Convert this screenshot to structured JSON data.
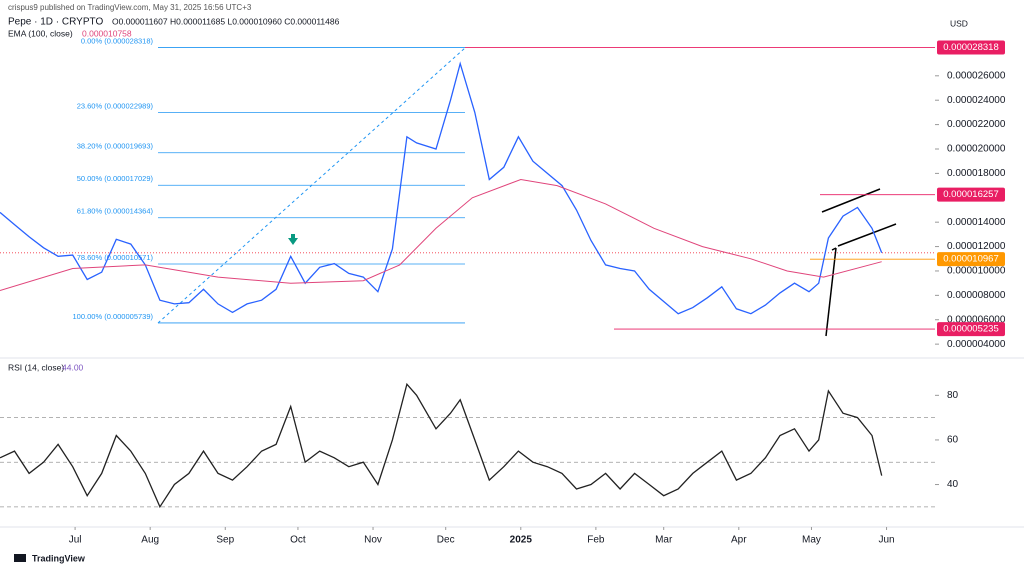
{
  "header": {
    "publisher": "crispus9 published on TradingView.com, May 31, 2025 16:56 UTC+3",
    "symbol": "Pepe · 1D · CRYPTO",
    "ohlc": "O0.000011607 H0.000011685 L0.000010960 C0.000011486",
    "ema_label": "EMA (100, close)",
    "ema_value": "0.000010758",
    "currency": "USD",
    "footer": "TradingView"
  },
  "chart_data": [
    {
      "type": "line",
      "title": "Pepe · 1D · CRYPTO",
      "x": [
        0,
        6,
        12,
        18,
        24,
        30,
        36,
        42,
        48,
        54,
        60,
        66,
        72,
        78,
        84,
        90,
        96,
        102,
        108,
        114,
        120,
        126,
        132,
        138,
        144,
        150,
        156,
        162,
        168,
        172,
        180,
        186,
        190,
        196,
        202,
        208,
        214,
        220,
        226,
        232,
        238,
        244,
        250,
        256,
        262,
        268,
        274,
        280,
        286,
        292,
        298,
        304,
        310,
        316,
        322,
        328,
        334,
        338,
        342,
        348,
        354,
        360,
        364
      ],
      "xlim": [
        0,
        386
      ],
      "xticks": [
        {
          "value": 31,
          "label": "Jul"
        },
        {
          "value": 62,
          "label": "Aug"
        },
        {
          "value": 93,
          "label": "Sep"
        },
        {
          "value": 123,
          "label": "Oct"
        },
        {
          "value": 154,
          "label": "Nov"
        },
        {
          "value": 184,
          "label": "Dec"
        },
        {
          "value": 215,
          "label": "2025"
        },
        {
          "value": 246,
          "label": "Feb"
        },
        {
          "value": 274,
          "label": "Mar"
        },
        {
          "value": 305,
          "label": "Apr"
        },
        {
          "value": 335,
          "label": "May"
        },
        {
          "value": 366,
          "label": "Jun"
        }
      ],
      "ylim": [
        3.11e-06,
        2.91e-05
      ],
      "yticks": [
        {
          "value": 4e-06,
          "label": "0.000004000"
        },
        {
          "value": 6e-06,
          "label": "0.000006000"
        },
        {
          "value": 8e-06,
          "label": "0.000008000"
        },
        {
          "value": 1e-05,
          "label": "0.000010000"
        },
        {
          "value": 1.2e-05,
          "label": "0.000012000"
        },
        {
          "value": 1.4e-05,
          "label": "0.000014000"
        },
        {
          "value": 1.8e-05,
          "label": "0.000018000"
        },
        {
          "value": 2e-05,
          "label": "0.000020000"
        },
        {
          "value": 2.2e-05,
          "label": "0.000022000"
        },
        {
          "value": 2.4e-05,
          "label": "0.000024000"
        },
        {
          "value": 2.6e-05,
          "label": "0.000026000"
        }
      ],
      "series": [
        {
          "name": "Pepe",
          "color": "#2962ff",
          "values": [
            1.48e-05,
            1.38e-05,
            1.28e-05,
            1.19e-05,
            1.12e-05,
            1.13e-05,
            9.3e-06,
            9.9e-06,
            1.26e-05,
            1.22e-05,
            1.05e-05,
            7.6e-06,
            7.3e-06,
            7.4e-06,
            8.5e-06,
            7.3e-06,
            6.6e-06,
            7.3e-06,
            7.6e-06,
            8.5e-06,
            1.12e-05,
            9e-06,
            1.03e-05,
            1.06e-05,
            9.8e-06,
            9.5e-06,
            8.3e-06,
            1.18e-05,
            2.1e-05,
            2.05e-05,
            2e-05,
            2.4e-05,
            2.7e-05,
            2.3e-05,
            1.75e-05,
            1.85e-05,
            2.1e-05,
            1.9e-05,
            1.8e-05,
            1.7e-05,
            1.5e-05,
            1.25e-05,
            1.05e-05,
            1.02e-05,
            1e-05,
            8.5e-06,
            7.5e-06,
            6.5e-06,
            7e-06,
            7.8e-06,
            8.7e-06,
            6.9e-06,
            6.5e-06,
            7.2e-06,
            8.2e-06,
            9e-06,
            8.3e-06,
            9e-06,
            1.27e-05,
            1.45e-05,
            1.52e-05,
            1.35e-05,
            1.149e-05
          ]
        },
        {
          "name": "EMA (100, close)",
          "color": "#e0457b",
          "x": [
            0,
            30,
            60,
            90,
            120,
            150,
            165,
            180,
            195,
            215,
            230,
            250,
            270,
            290,
            310,
            325,
            340,
            364
          ],
          "values": [
            8.4e-06,
            1.02e-05,
            1.05e-05,
            9.5e-06,
            9e-06,
            9.2e-06,
            1.05e-05,
            1.35e-05,
            1.6e-05,
            1.75e-05,
            1.7e-05,
            1.55e-05,
            1.35e-05,
            1.2e-05,
            1.1e-05,
            1e-05,
            9.5e-06,
            1.0758e-05
          ]
        }
      ],
      "fib_levels": [
        {
          "label": "0.00% (0.000028318)",
          "value": 2.8318e-05
        },
        {
          "label": "23.60% (0.000022989)",
          "value": 2.2989e-05
        },
        {
          "label": "38.20% (0.000019693)",
          "value": 1.9693e-05
        },
        {
          "label": "50.00% (0.000017029)",
          "value": 1.7029e-05
        },
        {
          "label": "61.80% (0.000014364)",
          "value": 1.4364e-05
        },
        {
          "label": "78.60% (0.000010571)",
          "value": 1.0571e-05
        },
        {
          "label": "100.00% (0.000005739)",
          "value": 5.739e-06
        }
      ],
      "price_labels": [
        {
          "value": 2.8318e-05,
          "color": "#e91e63"
        },
        {
          "value": 1.6257e-05,
          "color": "#e91e63"
        },
        {
          "value": 1.0967e-05,
          "color": "#ff9800"
        },
        {
          "value": 5.235e-06,
          "color": "#e91e63"
        }
      ]
    },
    {
      "type": "line",
      "title": "RSI (14, close)",
      "last_label": "44.00",
      "ylim": [
        24.1,
        93.6
      ],
      "yticks": [
        40,
        60,
        80
      ],
      "bands": [
        30,
        50,
        70
      ],
      "series": [
        {
          "name": "RSI",
          "color": "#222222",
          "values": [
            52,
            55,
            45,
            50,
            58,
            48,
            35,
            45,
            62,
            55,
            45,
            30,
            40,
            45,
            55,
            45,
            42,
            48,
            55,
            58,
            75,
            50,
            55,
            52,
            48,
            50,
            40,
            60,
            85,
            80,
            65,
            72,
            78,
            60,
            42,
            48,
            55,
            50,
            48,
            45,
            38,
            40,
            45,
            38,
            45,
            40,
            35,
            38,
            45,
            50,
            55,
            42,
            45,
            52,
            62,
            65,
            55,
            60,
            82,
            72,
            70,
            62,
            44
          ]
        }
      ]
    }
  ]
}
